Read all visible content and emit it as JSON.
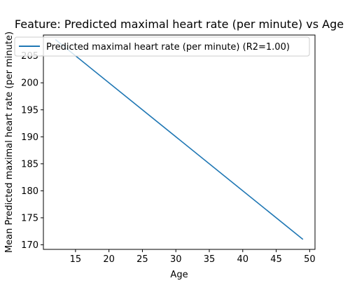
{
  "chart_data": {
    "type": "line",
    "title": "Feature: Predicted maximal heart rate (per minute) vs Age",
    "xlabel": "Age",
    "ylabel": "Mean Predicted maximal heart rate (per minute)",
    "xlim": [
      10.2,
      50.8
    ],
    "ylim": [
      169.15,
      208.85
    ],
    "xticks": [
      15,
      20,
      25,
      30,
      35,
      40,
      45,
      50
    ],
    "yticks": [
      170,
      175,
      180,
      185,
      190,
      195,
      200,
      205
    ],
    "grid": false,
    "legend_position": "top-left",
    "series": [
      {
        "name": "Predicted maximal heart rate (per minute) (R2=1.00)",
        "color": "#1f77b4",
        "x": [
          12,
          49
        ],
        "y": [
          208,
          171
        ]
      }
    ]
  }
}
